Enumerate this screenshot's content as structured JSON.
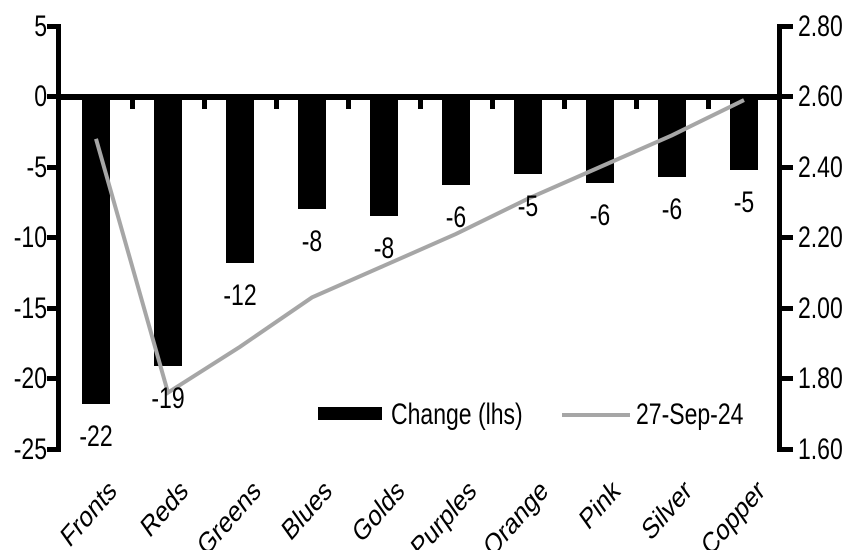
{
  "colors": {
    "background": "#ffffff",
    "bar": "#000000",
    "line": "#a6a6a6",
    "axis": "#000000",
    "text": "#000000"
  },
  "chart_data": {
    "type": "bar",
    "subtype": "combo-bar-line-dual-axis",
    "title": "",
    "grid": false,
    "categories": [
      "Fronts",
      "Reds",
      "Greens",
      "Blues",
      "Golds",
      "Purples",
      "Orange",
      "Pink",
      "Silver",
      "Copper"
    ],
    "bar_series": {
      "name": "Change (lhs)",
      "axis": "left",
      "color": "#000000",
      "values": [
        -22,
        -19,
        -12,
        -8,
        -8,
        -6,
        -5,
        -6,
        -6,
        -5
      ],
      "data_labels": [
        "-22",
        "-19",
        "-12",
        "-8",
        "-8",
        "-6",
        "-5",
        "-6",
        "-6",
        "-5"
      ],
      "values_precise": [
        -21.8,
        -19.1,
        -11.8,
        -8.0,
        -8.5,
        -6.3,
        -5.5,
        -6.1,
        -5.7,
        -5.2
      ]
    },
    "line_series": {
      "name": "27-Sep-24",
      "axis": "right",
      "color": "#a6a6a6",
      "values": [
        2.48,
        1.76,
        1.89,
        2.03,
        2.12,
        2.21,
        2.31,
        2.4,
        2.49,
        2.59
      ]
    },
    "left_axis": {
      "min": -25,
      "max": 5,
      "tick_step": 5,
      "tick_labels": [
        "5",
        "0",
        "-5",
        "-10",
        "-15",
        "-20",
        "-25"
      ]
    },
    "right_axis": {
      "min": 1.6,
      "max": 2.8,
      "tick_step": 0.2,
      "tick_labels": [
        "2.80",
        "2.60",
        "2.40",
        "2.20",
        "2.00",
        "1.80",
        "1.60"
      ]
    },
    "legend": {
      "position": "inside-bottom-center",
      "items": [
        {
          "label": "Change (lhs)",
          "swatch": "bar"
        },
        {
          "label": "27-Sep-24",
          "swatch": "line"
        }
      ]
    }
  }
}
